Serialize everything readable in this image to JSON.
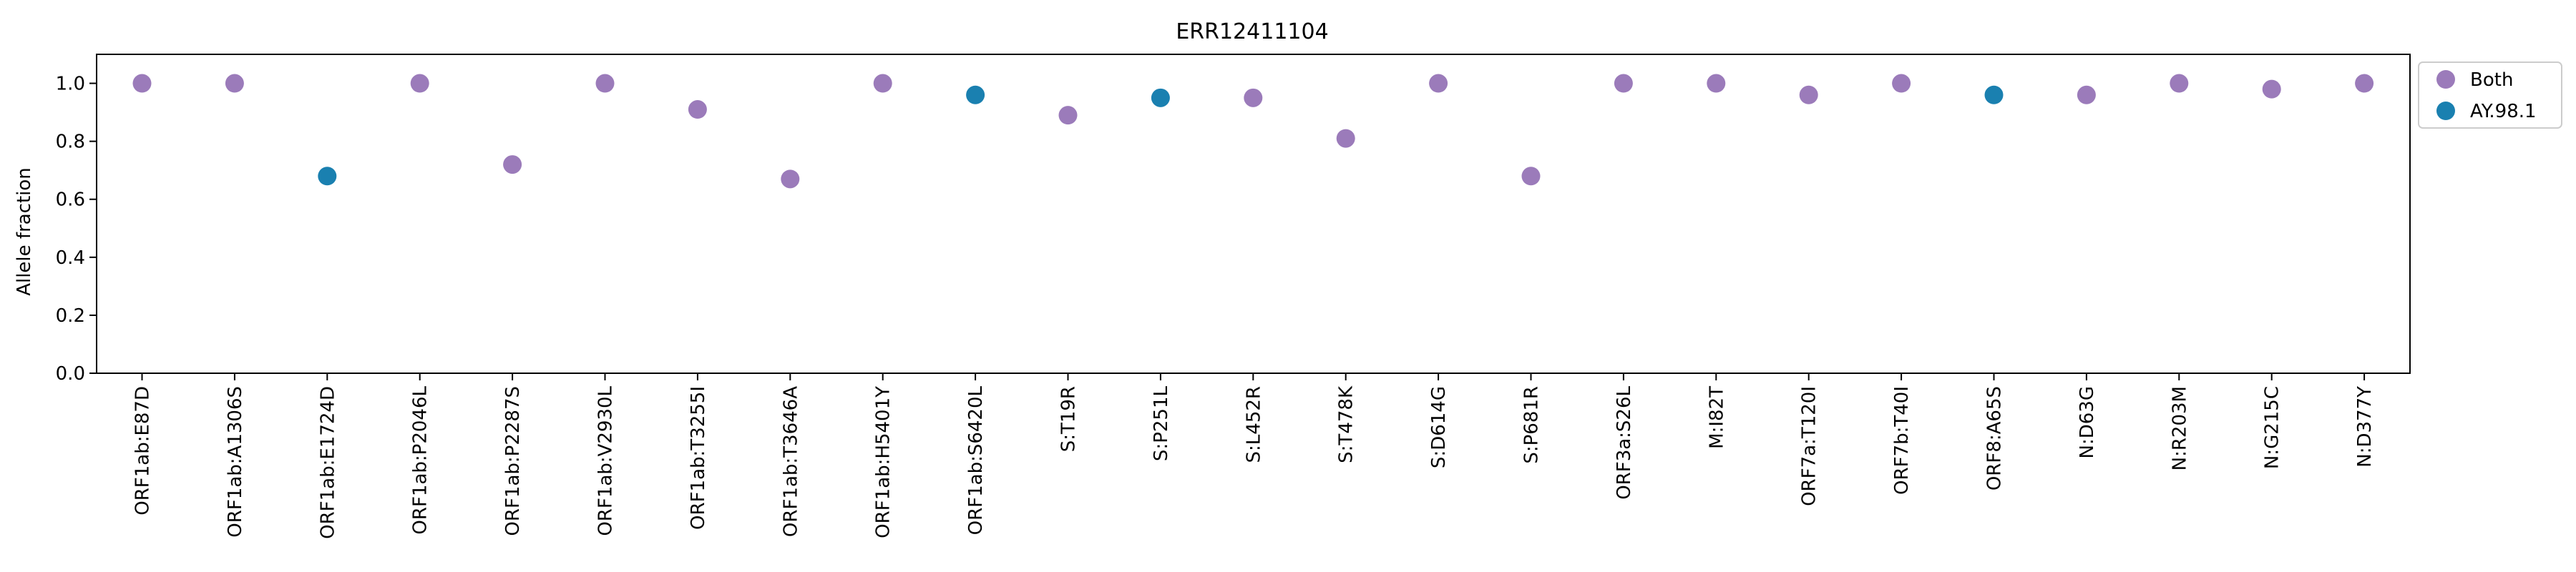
{
  "chart_data": {
    "type": "scatter",
    "title": "ERR12411104",
    "xlabel": "",
    "ylabel": "Allele fraction",
    "ylim": [
      0.0,
      1.1
    ],
    "yticks": [
      0.0,
      0.2,
      0.4,
      0.6,
      0.8,
      1.0
    ],
    "ytick_labels": [
      "0.0",
      "0.2",
      "0.4",
      "0.6",
      "0.8",
      "1.0"
    ],
    "grid": false,
    "legend_position": "outside-top-right",
    "categories": [
      "ORF1ab:E87D",
      "ORF1ab:A1306S",
      "ORF1ab:E1724D",
      "ORF1ab:P2046L",
      "ORF1ab:P2287S",
      "ORF1ab:V2930L",
      "ORF1ab:T3255I",
      "ORF1ab:T3646A",
      "ORF1ab:H5401Y",
      "ORF1ab:S6420L",
      "S:T19R",
      "S:P251L",
      "S:L452R",
      "S:T478K",
      "S:D614G",
      "S:P681R",
      "ORF3a:S26L",
      "M:I82T",
      "ORF7a:T120I",
      "ORF7b:T40I",
      "ORF8:A65S",
      "N:D63G",
      "N:R203M",
      "N:G215C",
      "N:D377Y"
    ],
    "series": [
      {
        "name": "Both",
        "color": "#9b7bba",
        "points": [
          {
            "x": "ORF1ab:E87D",
            "y": 1.0
          },
          {
            "x": "ORF1ab:A1306S",
            "y": 1.0
          },
          {
            "x": "ORF1ab:P2046L",
            "y": 1.0
          },
          {
            "x": "ORF1ab:P2287S",
            "y": 0.72
          },
          {
            "x": "ORF1ab:V2930L",
            "y": 1.0
          },
          {
            "x": "ORF1ab:T3255I",
            "y": 0.91
          },
          {
            "x": "ORF1ab:T3646A",
            "y": 0.67
          },
          {
            "x": "ORF1ab:H5401Y",
            "y": 1.0
          },
          {
            "x": "S:T19R",
            "y": 0.89
          },
          {
            "x": "S:L452R",
            "y": 0.95
          },
          {
            "x": "S:T478K",
            "y": 0.81
          },
          {
            "x": "S:D614G",
            "y": 1.0
          },
          {
            "x": "S:P681R",
            "y": 0.68
          },
          {
            "x": "ORF3a:S26L",
            "y": 1.0
          },
          {
            "x": "M:I82T",
            "y": 1.0
          },
          {
            "x": "ORF7a:T120I",
            "y": 0.96
          },
          {
            "x": "ORF7b:T40I",
            "y": 1.0
          },
          {
            "x": "N:D63G",
            "y": 0.96
          },
          {
            "x": "N:R203M",
            "y": 1.0
          },
          {
            "x": "N:G215C",
            "y": 0.98
          },
          {
            "x": "N:D377Y",
            "y": 1.0
          }
        ]
      },
      {
        "name": "AY.98.1",
        "color": "#1a80b0",
        "points": [
          {
            "x": "ORF1ab:E1724D",
            "y": 0.68
          },
          {
            "x": "ORF1ab:S6420L",
            "y": 0.96
          },
          {
            "x": "S:P251L",
            "y": 0.95
          },
          {
            "x": "ORF8:A65S",
            "y": 0.96
          }
        ]
      }
    ]
  }
}
